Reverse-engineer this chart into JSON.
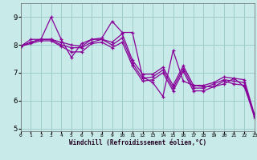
{
  "xlabel": "Windchill (Refroidissement éolien,°C)",
  "bg_color": "#c8eae8",
  "grid_color": "#a0cccc",
  "line_color": "#880099",
  "xlim": [
    0,
    23
  ],
  "ylim": [
    4.9,
    9.5
  ],
  "yticks": [
    5,
    6,
    7,
    8,
    9
  ],
  "xticks": [
    0,
    1,
    2,
    3,
    4,
    5,
    6,
    7,
    8,
    9,
    10,
    11,
    12,
    13,
    14,
    15,
    16,
    17,
    18,
    19,
    20,
    21,
    22,
    23
  ],
  "series": [
    [
      7.95,
      8.2,
      8.2,
      9.0,
      8.2,
      7.55,
      8.05,
      8.2,
      8.25,
      8.85,
      8.45,
      8.45,
      6.85,
      6.65,
      6.15,
      7.8,
      6.7,
      6.55,
      6.5,
      6.5,
      6.6,
      6.8,
      6.5,
      5.5
    ],
    [
      7.95,
      8.1,
      8.2,
      8.2,
      8.1,
      8.0,
      7.95,
      8.2,
      8.2,
      8.1,
      8.4,
      7.45,
      6.95,
      6.95,
      7.2,
      6.55,
      7.25,
      6.55,
      6.55,
      6.65,
      6.85,
      6.8,
      6.75,
      5.5
    ],
    [
      7.95,
      8.1,
      8.2,
      8.2,
      8.0,
      7.9,
      7.9,
      8.1,
      8.2,
      8.0,
      8.25,
      7.35,
      6.8,
      6.85,
      7.1,
      6.45,
      7.15,
      6.45,
      6.45,
      6.6,
      6.75,
      6.7,
      6.65,
      5.45
    ],
    [
      7.95,
      8.05,
      8.15,
      8.15,
      7.95,
      7.75,
      7.75,
      8.05,
      8.1,
      7.9,
      8.1,
      7.25,
      6.7,
      6.75,
      7.0,
      6.35,
      7.05,
      6.35,
      6.35,
      6.5,
      6.7,
      6.6,
      6.55,
      5.4
    ]
  ]
}
